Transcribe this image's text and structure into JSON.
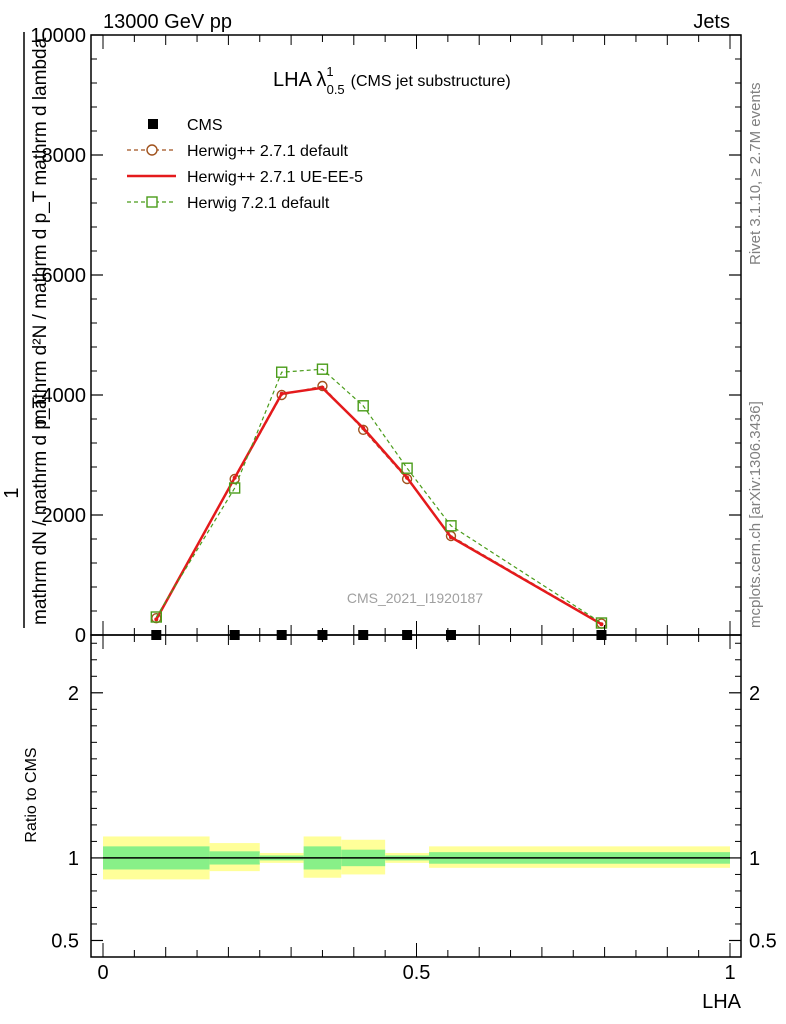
{
  "header": {
    "energy": "13000 GeV pp",
    "category": "Jets",
    "side_rivet": "Rivet 3.1.10, ≥ 2.7M events",
    "side_site": "mcplots.cern.ch [arXiv:1306.3436]"
  },
  "chart_data": [
    {
      "type": "line",
      "title_main": "LHA λ",
      "title_sup": "1",
      "title_sub": "0.5",
      "title_note": "(CMS jet substructure)",
      "watermark": "CMS_2021_I1920187",
      "ylabel_num": "1",
      "ylabel_den": "mathrm dN / mathrm d p_T",
      "ylabel_main": "mathrm d²N / mathrm d p_T mathrm d lambda",
      "ylim": [
        0,
        10000
      ],
      "yticks": [
        {
          "v": 0,
          "label": "0"
        },
        {
          "v": 2000,
          "label": "2000"
        },
        {
          "v": 4000,
          "label": "4000"
        },
        {
          "v": 6000,
          "label": "6000"
        },
        {
          "v": 8000,
          "label": "8000"
        },
        {
          "v": 10000,
          "label": "10000"
        }
      ],
      "xlim": [
        0,
        1
      ],
      "series": [
        {
          "name": "CMS",
          "color": "#000000",
          "marker": "filled-square",
          "x": [
            0.085,
            0.21,
            0.285,
            0.35,
            0.415,
            0.485,
            0.555,
            0.795
          ],
          "y": [
            0,
            0,
            0,
            0,
            0,
            0,
            0,
            0
          ]
        },
        {
          "name": "Herwig++ 2.7.1 default",
          "color": "#a0521d",
          "marker": "open-circle",
          "dash": "4,3",
          "x": [
            0.085,
            0.21,
            0.285,
            0.35,
            0.415,
            0.485,
            0.555,
            0.795
          ],
          "y": [
            280,
            2600,
            4000,
            4150,
            3420,
            2600,
            1650,
            190
          ]
        },
        {
          "name": "Herwig++ 2.7.1 UE-EE-5",
          "color": "#e41a1c",
          "marker": "none",
          "dash": "",
          "x": [
            0.085,
            0.21,
            0.285,
            0.35,
            0.415,
            0.485,
            0.555,
            0.795
          ],
          "y": [
            260,
            2620,
            4020,
            4120,
            3450,
            2620,
            1630,
            180
          ]
        },
        {
          "name": "Herwig 7.2.1 default",
          "color": "#4a9c1a",
          "marker": "open-square",
          "dash": "4,3",
          "x": [
            0.085,
            0.21,
            0.285,
            0.35,
            0.415,
            0.485,
            0.555,
            0.795
          ],
          "y": [
            300,
            2450,
            4380,
            4430,
            3820,
            2780,
            1820,
            200
          ]
        }
      ]
    },
    {
      "type": "area",
      "ylabel": "Ratio to CMS",
      "xlabel": "LHA",
      "ylim": [
        0.4,
        2.35
      ],
      "yticks": [
        {
          "v": 0.5,
          "label": "0.5"
        },
        {
          "v": 1,
          "label": "1"
        },
        {
          "v": 2,
          "label": "2"
        }
      ],
      "xticks": [
        {
          "v": 0,
          "label": "0"
        },
        {
          "v": 0.5,
          "label": "0.5"
        },
        {
          "v": 1,
          "label": "1"
        }
      ],
      "bins": [
        {
          "x0": 0.0,
          "x1": 0.17,
          "inner": [
            0.93,
            1.07
          ],
          "outer": [
            0.87,
            1.13
          ]
        },
        {
          "x0": 0.17,
          "x1": 0.25,
          "inner": [
            0.96,
            1.04
          ],
          "outer": [
            0.92,
            1.09
          ]
        },
        {
          "x0": 0.25,
          "x1": 0.32,
          "inner": [
            0.985,
            1.015
          ],
          "outer": [
            0.97,
            1.03
          ]
        },
        {
          "x0": 0.32,
          "x1": 0.38,
          "inner": [
            0.93,
            1.07
          ],
          "outer": [
            0.88,
            1.13
          ]
        },
        {
          "x0": 0.38,
          "x1": 0.45,
          "inner": [
            0.95,
            1.05
          ],
          "outer": [
            0.9,
            1.11
          ]
        },
        {
          "x0": 0.45,
          "x1": 0.52,
          "inner": [
            0.985,
            1.015
          ],
          "outer": [
            0.97,
            1.03
          ]
        },
        {
          "x0": 0.52,
          "x1": 1.0,
          "inner": [
            0.965,
            1.035
          ],
          "outer": [
            0.94,
            1.07
          ]
        }
      ],
      "band_colors": {
        "inner": "#88f088",
        "outer": "#ffff99"
      },
      "reference": 1
    }
  ]
}
